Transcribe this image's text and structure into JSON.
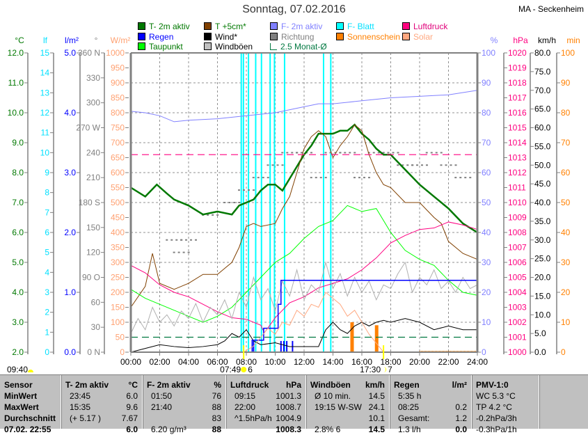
{
  "title": "Sonntag, 07.02.2016",
  "station": "MA - Seckenheim",
  "legend": [
    {
      "label": "T- 2m aktiv",
      "color": "#007800",
      "text_color": "#007800"
    },
    {
      "label": "T +5cm*",
      "color": "#804000",
      "text_color": "#007800"
    },
    {
      "label": "F- 2m aktiv",
      "color": "#8080ff",
      "text_color": "#8080ff"
    },
    {
      "label": "F- Blatt",
      "color": "#00ffff",
      "text_color": "#00e0ff"
    },
    {
      "label": "Luftdruck",
      "color": "#ff0080",
      "text_color": "#e0007a"
    },
    {
      "label": "Regen",
      "color": "#0000ff",
      "text_color": "#0000ff"
    },
    {
      "label": "Wind*",
      "color": "#000000",
      "text_color": "#000000"
    },
    {
      "label": "Richtung",
      "color": "#808080",
      "text_color": "#808080"
    },
    {
      "label": "Sonnenschein",
      "color": "#ff8000",
      "text_color": "#ff8000"
    },
    {
      "label": "Solar",
      "color": "#ffa880",
      "text_color": "#ffa880"
    },
    {
      "label": "Taupunkt",
      "color": "#00ff00",
      "text_color": "#007800"
    },
    {
      "label": "Windböen",
      "color": "#c0c0c0",
      "text_color": "#000000"
    },
    {
      "label": "2.5 Monat-Ø",
      "color": "#007840",
      "text_color": "#007840"
    }
  ],
  "chart_data": {
    "type": "line",
    "title": "Sonntag, 07.02.2016",
    "x_range": [
      0,
      24
    ],
    "x_ticks": [
      "00:00",
      "02:00",
      "04:00",
      "06:00",
      "08:00",
      "10:00",
      "12:00",
      "14:00",
      "16:00",
      "18:00",
      "20:00",
      "22:00",
      "24:00"
    ],
    "grid": true,
    "axes": [
      {
        "id": "temp",
        "unit": "°C",
        "side": "left",
        "min": 2,
        "max": 12,
        "step": 1,
        "decimals": 1,
        "color": "#007800"
      },
      {
        "id": "lf",
        "unit": "lf",
        "side": "left",
        "min": 0,
        "max": 15,
        "step": 1,
        "decimals": 0,
        "color": "#00e0ff"
      },
      {
        "id": "rain",
        "unit": "l/m²",
        "side": "left",
        "min": 0,
        "max": 5,
        "step": 1,
        "decimals": 1,
        "color": "#0000ff"
      },
      {
        "id": "dir",
        "unit": "°",
        "side": "left",
        "min": 0,
        "max": 360,
        "step": 30,
        "decimals": 0,
        "color": "#808080",
        "named": {
          "360": "360 N",
          "270": "270 W",
          "180": "180 S",
          "90": "90 O",
          "0": "0 N"
        }
      },
      {
        "id": "solar",
        "unit": "W/m²",
        "side": "left",
        "min": 0,
        "max": 1000,
        "step": 50,
        "decimals": 0,
        "color": "#ffa070"
      },
      {
        "id": "hum",
        "unit": "%",
        "side": "right",
        "min": 0,
        "max": 100,
        "step": 10,
        "decimals": 0,
        "color": "#8080ff"
      },
      {
        "id": "press",
        "unit": "hPa",
        "side": "right",
        "min": 1000,
        "max": 1020,
        "step": 1,
        "decimals": 0,
        "color": "#ff0080"
      },
      {
        "id": "wind",
        "unit": "km/h",
        "side": "right",
        "min": 0,
        "max": 80,
        "step": 5,
        "decimals": 1,
        "color": "#000000"
      },
      {
        "id": "sun",
        "unit": "min",
        "side": "right",
        "min": 0,
        "max": 100,
        "step": 10,
        "decimals": 0,
        "color": "#ff8000"
      }
    ],
    "series": [
      {
        "name": "T- 2m aktiv",
        "axis": "temp",
        "color": "#007800",
        "width": 2.5,
        "x": [
          0,
          1,
          1.8,
          2.5,
          3,
          4,
          5,
          6,
          7,
          7.5,
          8,
          8.5,
          9,
          9.5,
          10,
          10.5,
          11,
          11.5,
          12,
          12.5,
          13,
          13.5,
          14,
          14.5,
          15,
          15.5,
          16,
          16.5,
          17,
          17.5,
          18,
          19,
          20,
          21,
          22,
          23,
          24
        ],
        "y": [
          7.5,
          7.2,
          7.6,
          7.3,
          7.1,
          6.9,
          6.6,
          6.7,
          6.6,
          6.9,
          7.0,
          7.1,
          7.4,
          7.6,
          7.6,
          7.4,
          7.8,
          8.2,
          8.6,
          8.9,
          9.3,
          9.3,
          9.3,
          9.4,
          9.4,
          9.6,
          9.3,
          9.1,
          8.8,
          8.6,
          8.6,
          8.1,
          7.6,
          7.2,
          6.8,
          6.3,
          6.0
        ]
      },
      {
        "name": "T +5cm*",
        "axis": "temp",
        "color": "#804000",
        "width": 1,
        "x": [
          0,
          1,
          1.5,
          2,
          3,
          4,
          5,
          6,
          7,
          7.5,
          8,
          8.5,
          9,
          10,
          10.5,
          11,
          11.5,
          12,
          12.5,
          13,
          13.5,
          14,
          14.5,
          15,
          15.5,
          16,
          16.5,
          17,
          17.5,
          18,
          19,
          20,
          21,
          21.5,
          22,
          23,
          24
        ],
        "y": [
          3.5,
          4.2,
          5.3,
          4.3,
          4.1,
          4.3,
          4.6,
          4.6,
          5.0,
          5.5,
          6.2,
          6.3,
          6.2,
          6.3,
          6.8,
          7.2,
          8.0,
          8.8,
          9.2,
          9.4,
          9.2,
          8.5,
          8.9,
          9.2,
          9.6,
          9.4,
          8.6,
          8.0,
          7.6,
          7.5,
          7.0,
          7.0,
          6.5,
          6.3,
          5.7,
          5.3,
          5.1
        ]
      },
      {
        "name": "F- 2m aktiv",
        "axis": "hum",
        "color": "#8080ff",
        "width": 1,
        "x": [
          0,
          1,
          2,
          3,
          4,
          6,
          8,
          10,
          12,
          13,
          14,
          15,
          16,
          18,
          20,
          22,
          24
        ],
        "y": [
          80.5,
          80,
          79,
          77,
          77.5,
          78,
          79,
          80,
          82,
          83,
          83,
          83.5,
          84,
          85,
          85.5,
          86,
          87.5
        ]
      },
      {
        "name": "Taupunkt",
        "axis": "temp",
        "color": "#00ff00",
        "width": 1,
        "x": [
          0,
          1,
          2,
          3,
          4,
          5,
          6,
          7,
          8,
          9,
          10,
          11,
          12,
          13,
          14,
          15,
          16,
          17,
          18,
          19,
          20,
          21,
          22,
          23,
          24
        ],
        "y": [
          4.1,
          3.8,
          3.6,
          3.4,
          3.2,
          3.0,
          3.2,
          3.5,
          4.0,
          4.5,
          5.0,
          5.3,
          5.8,
          6.2,
          6.4,
          6.9,
          6.7,
          6.8,
          6.0,
          5.4,
          5.1,
          4.9,
          4.4,
          4.0,
          3.9
        ]
      },
      {
        "name": "Luftdruck",
        "axis": "press",
        "color": "#ff0080",
        "width": 1,
        "x": [
          0,
          1,
          2,
          3,
          4,
          5,
          6,
          7,
          8,
          9,
          9.25,
          10,
          11,
          12,
          13,
          14,
          15,
          16,
          17,
          18,
          19,
          20,
          21,
          22,
          23,
          24
        ],
        "y": [
          1005.8,
          1005.3,
          1004.5,
          1004.0,
          1003.7,
          1003.2,
          1002.7,
          1002.3,
          1002.2,
          1001.8,
          1001.3,
          1002.3,
          1003.3,
          1003.7,
          1004.3,
          1004.6,
          1004.9,
          1005.5,
          1006.3,
          1007.3,
          1007.8,
          1008.2,
          1008.3,
          1008.7,
          1008.5,
          1008.2
        ]
      },
      {
        "name": "Windböen",
        "axis": "wind",
        "color": "#b0b0b0",
        "width": 1,
        "x": [
          0,
          0.5,
          1,
          1.5,
          2,
          2.5,
          3,
          3.5,
          4,
          4.5,
          5,
          5.5,
          6,
          6.5,
          7,
          7.5,
          8,
          8.5,
          9,
          9.5,
          10,
          10.5,
          11,
          11.5,
          12,
          12.5,
          13,
          13.5,
          14,
          14.5,
          15,
          15.5,
          16,
          16.5,
          17,
          17.5,
          18,
          18.5,
          19,
          19.5,
          20,
          20.5,
          21,
          21.5,
          22,
          22.5,
          23,
          23.5,
          24
        ],
        "y": [
          5,
          9,
          6,
          12,
          8,
          10,
          7,
          11,
          9,
          13,
          8,
          12,
          10,
          14,
          9,
          16,
          12,
          20,
          14,
          17,
          11,
          19,
          15,
          22,
          14,
          18,
          16,
          24,
          17,
          21,
          15,
          20,
          16,
          19,
          14,
          18,
          17,
          21,
          24,
          16,
          20,
          18,
          22,
          17,
          19,
          16,
          20,
          17,
          18
        ]
      },
      {
        "name": "Wind*",
        "axis": "wind",
        "color": "#000000",
        "width": 1,
        "x": [
          0,
          1,
          2,
          3,
          4,
          5,
          6,
          6.5,
          7,
          7.5,
          8,
          8.5,
          9,
          10,
          11,
          12,
          13,
          13.5,
          14,
          14.5,
          15,
          15.5,
          16,
          16.5,
          17,
          17.5,
          18,
          19,
          20,
          21,
          22,
          23,
          24
        ],
        "y": [
          0,
          1,
          2,
          1.5,
          1.2,
          1.5,
          2,
          3,
          5,
          4,
          6,
          3,
          2,
          2.5,
          1.5,
          1.5,
          1.5,
          6,
          8,
          6,
          5,
          7,
          8,
          7,
          8,
          8.5,
          8,
          9,
          8,
          6,
          7,
          6,
          6
        ]
      },
      {
        "name": "Regen",
        "axis": "rain",
        "color": "#0000ff",
        "width": 1.5,
        "step": true,
        "x": [
          0,
          8.4,
          9.2,
          10.2,
          10.4,
          24
        ],
        "y": [
          0,
          0.2,
          0.4,
          0.8,
          1.2,
          1.2
        ]
      },
      {
        "name": "Solar",
        "axis": "solar",
        "color": "#ffa880",
        "width": 1,
        "x": [
          0,
          7.8,
          8.5,
          9,
          9.5,
          10,
          10.5,
          11,
          11.5,
          12,
          12.5,
          13,
          13.5,
          14,
          14.5,
          15,
          15.5,
          16,
          16.5,
          17,
          17.5,
          18,
          24
        ],
        "y": [
          0,
          0,
          20,
          50,
          80,
          60,
          100,
          90,
          140,
          120,
          160,
          150,
          200,
          180,
          160,
          120,
          140,
          100,
          60,
          30,
          0,
          0,
          0
        ]
      },
      {
        "name": "2.5 Monat-Ø",
        "axis": "temp",
        "color": "#007840",
        "width": 1.2,
        "dash": "10,6",
        "x": [
          0,
          24
        ],
        "y": [
          2.5,
          2.5
        ]
      },
      {
        "name": "Normaldruck",
        "axis": "press",
        "color": "#ff0080",
        "width": 1.2,
        "dash": "10,6",
        "x": [
          0,
          24
        ],
        "y": [
          1013.2,
          1013.2
        ]
      }
    ],
    "f_blatt_spikes_hours": [
      7.6,
      7.75,
      8.1,
      8.6,
      9.0,
      9.6,
      9.9,
      10.6,
      13.3,
      13.8
    ],
    "sunshine_bars": [
      {
        "hour": 15.3,
        "minutes": 10
      },
      {
        "hour": 17.0,
        "minutes": 9
      }
    ],
    "rain_bars_hours": [
      8.5,
      10.4,
      10.6,
      10.8,
      11.2
    ]
  },
  "sun": {
    "left_time": "09:40",
    "sunrise": "07:49",
    "sunrise_suffix": "6",
    "sunset": "17:30",
    "sunset_suffix": "7"
  },
  "table": {
    "columns": [
      {
        "header": "Sensor",
        "unit": "",
        "rows": [
          [
            "MinWert",
            ""
          ],
          [
            "MaxWert",
            ""
          ],
          [
            "Durchschnitt",
            ""
          ],
          [
            "07.02. 22:55",
            ""
          ]
        ]
      },
      {
        "header": "T- 2m aktiv",
        "unit": "°C",
        "rows": [
          [
            "23:45",
            "6.0"
          ],
          [
            "15:35",
            "9.6"
          ],
          [
            "(+ 5.17 )",
            "7.67"
          ],
          [
            "",
            "6.0"
          ]
        ]
      },
      {
        "header": "F- 2m aktiv",
        "unit": "%",
        "rows": [
          [
            "01:50",
            "76"
          ],
          [
            "21:40",
            "88"
          ],
          [
            "",
            "83"
          ],
          [
            "6.20 g/m³",
            "88"
          ]
        ]
      },
      {
        "header": "Luftdruck",
        "unit": "hPa",
        "rows": [
          [
            "09:15",
            "1001.3"
          ],
          [
            "22:00",
            "1008.7"
          ],
          [
            "^1.5hPa/h",
            "1004.9"
          ],
          [
            "",
            "1008.3"
          ]
        ]
      },
      {
        "header": "Windböen",
        "unit": "km/h",
        "rows": [
          [
            "Ø 10 min.",
            "14.5"
          ],
          [
            "19:15  W-SW",
            "24.1"
          ],
          [
            "",
            "10.1"
          ],
          [
            "2.8% 6",
            "14.5"
          ]
        ]
      },
      {
        "header": "Regen",
        "unit": "l/m²",
        "rows": [
          [
            "5:35 h",
            ""
          ],
          [
            "08:25",
            "0.2"
          ],
          [
            "Gesamt:",
            "1.2"
          ],
          [
            "1.3 l/h",
            "0.0"
          ]
        ]
      },
      {
        "header": "PMV-1:0",
        "unit": "",
        "rows": [
          [
            "WC 5.3 °C",
            ""
          ],
          [
            "TP 4.2 °C",
            ""
          ],
          [
            "-0.2hPa/3h",
            ""
          ],
          [
            "-0.3hPa/1h",
            ""
          ]
        ]
      }
    ]
  }
}
